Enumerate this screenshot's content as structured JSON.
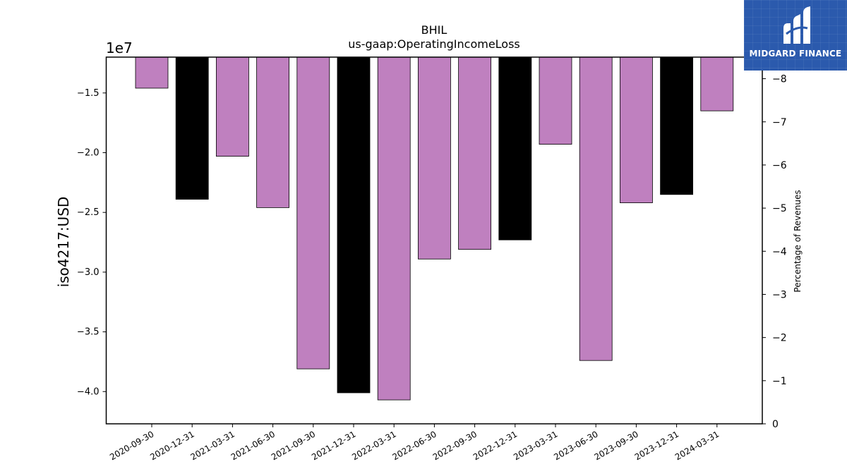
{
  "chart_data": {
    "type": "bar",
    "title": "BHIL",
    "subtitle": "us-gaap:OperatingIncomeLoss",
    "ylabel": "iso4217:USD",
    "ylabel_right": "Percentage of Revenues",
    "y_offset_label": "1e7",
    "y_scale": 10000000,
    "ylim": [
      -4.27,
      -1.2
    ],
    "yticks": [
      -1.5,
      -2.0,
      -2.5,
      -3.0,
      -3.5,
      -4.0
    ],
    "ytick_labels": [
      "−1.5",
      "−2.0",
      "−2.5",
      "−3.0",
      "−3.5",
      "−4.0"
    ],
    "right_ylim": [
      0,
      -8.5
    ],
    "right_yticks": [
      -8,
      -7,
      -6,
      -5,
      -4,
      -3,
      -2,
      -1,
      0
    ],
    "right_ytick_labels": [
      "−8",
      "−7",
      "−6",
      "−5",
      "−4",
      "−3",
      "−2",
      "−1",
      "0"
    ],
    "categories": [
      "2020-09-30",
      "2020-12-31",
      "2021-03-31",
      "2021-06-30",
      "2021-09-30",
      "2021-12-31",
      "2022-03-31",
      "2022-06-30",
      "2022-09-30",
      "2022-12-31",
      "2023-03-31",
      "2023-06-30",
      "2023-09-30",
      "2023-12-31",
      "2024-03-31"
    ],
    "values": [
      -14600000,
      -23900000,
      -20300000,
      -24600000,
      -38100000,
      -40100000,
      -40700000,
      -28900000,
      -28100000,
      -27300000,
      -19300000,
      -37400000,
      -24200000,
      -23500000,
      -16500000
    ],
    "bar_colors": [
      "#bf80bf",
      "#000000",
      "#bf80bf",
      "#bf80bf",
      "#bf80bf",
      "#000000",
      "#bf80bf",
      "#bf80bf",
      "#bf80bf",
      "#000000",
      "#bf80bf",
      "#bf80bf",
      "#bf80bf",
      "#000000",
      "#bf80bf"
    ],
    "colors": {
      "quarter": "#bf80bf",
      "year_end": "#000000"
    }
  },
  "logo": {
    "text": "MIDGARD FINANCE",
    "background": "#2b5aad"
  }
}
